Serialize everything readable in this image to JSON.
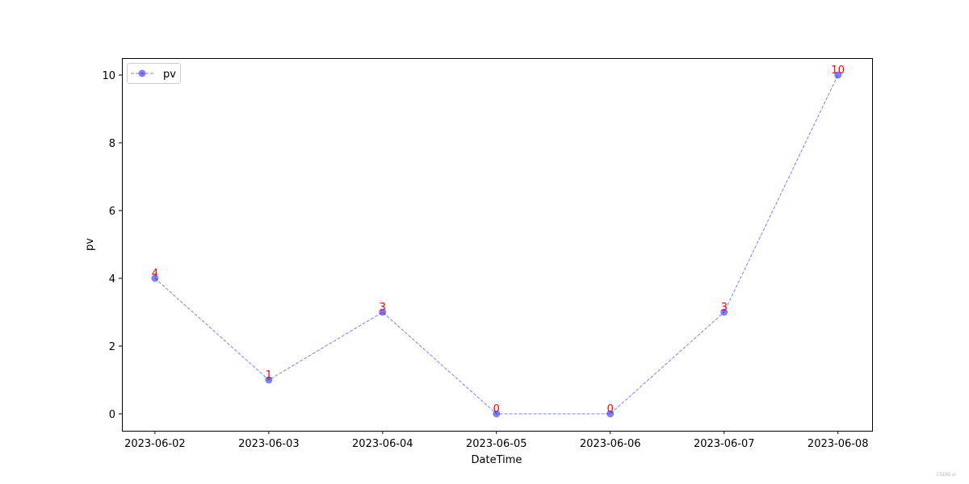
{
  "chart_data": {
    "type": "line",
    "title": "",
    "xlabel": "DateTime",
    "ylabel": "pv",
    "categories": [
      "2023-06-02",
      "2023-06-03",
      "2023-06-04",
      "2023-06-05",
      "2023-06-06",
      "2023-06-07",
      "2023-06-08"
    ],
    "series": [
      {
        "name": "pv",
        "values": [
          4,
          1,
          3,
          0,
          0,
          3,
          10
        ],
        "color": "#0000ff",
        "line_style": "dashed",
        "marker": "circle",
        "alpha": 0.5
      }
    ],
    "data_labels": [
      "4",
      "1",
      "3",
      "0",
      "0",
      "3",
      "10"
    ],
    "data_label_color": "#ff0000",
    "yticks": [
      0,
      2,
      4,
      6,
      8,
      10
    ],
    "ylim": [
      -0.5,
      10.5
    ],
    "grid": false,
    "legend": "top-left"
  },
  "watermark": "CSDN-ai"
}
